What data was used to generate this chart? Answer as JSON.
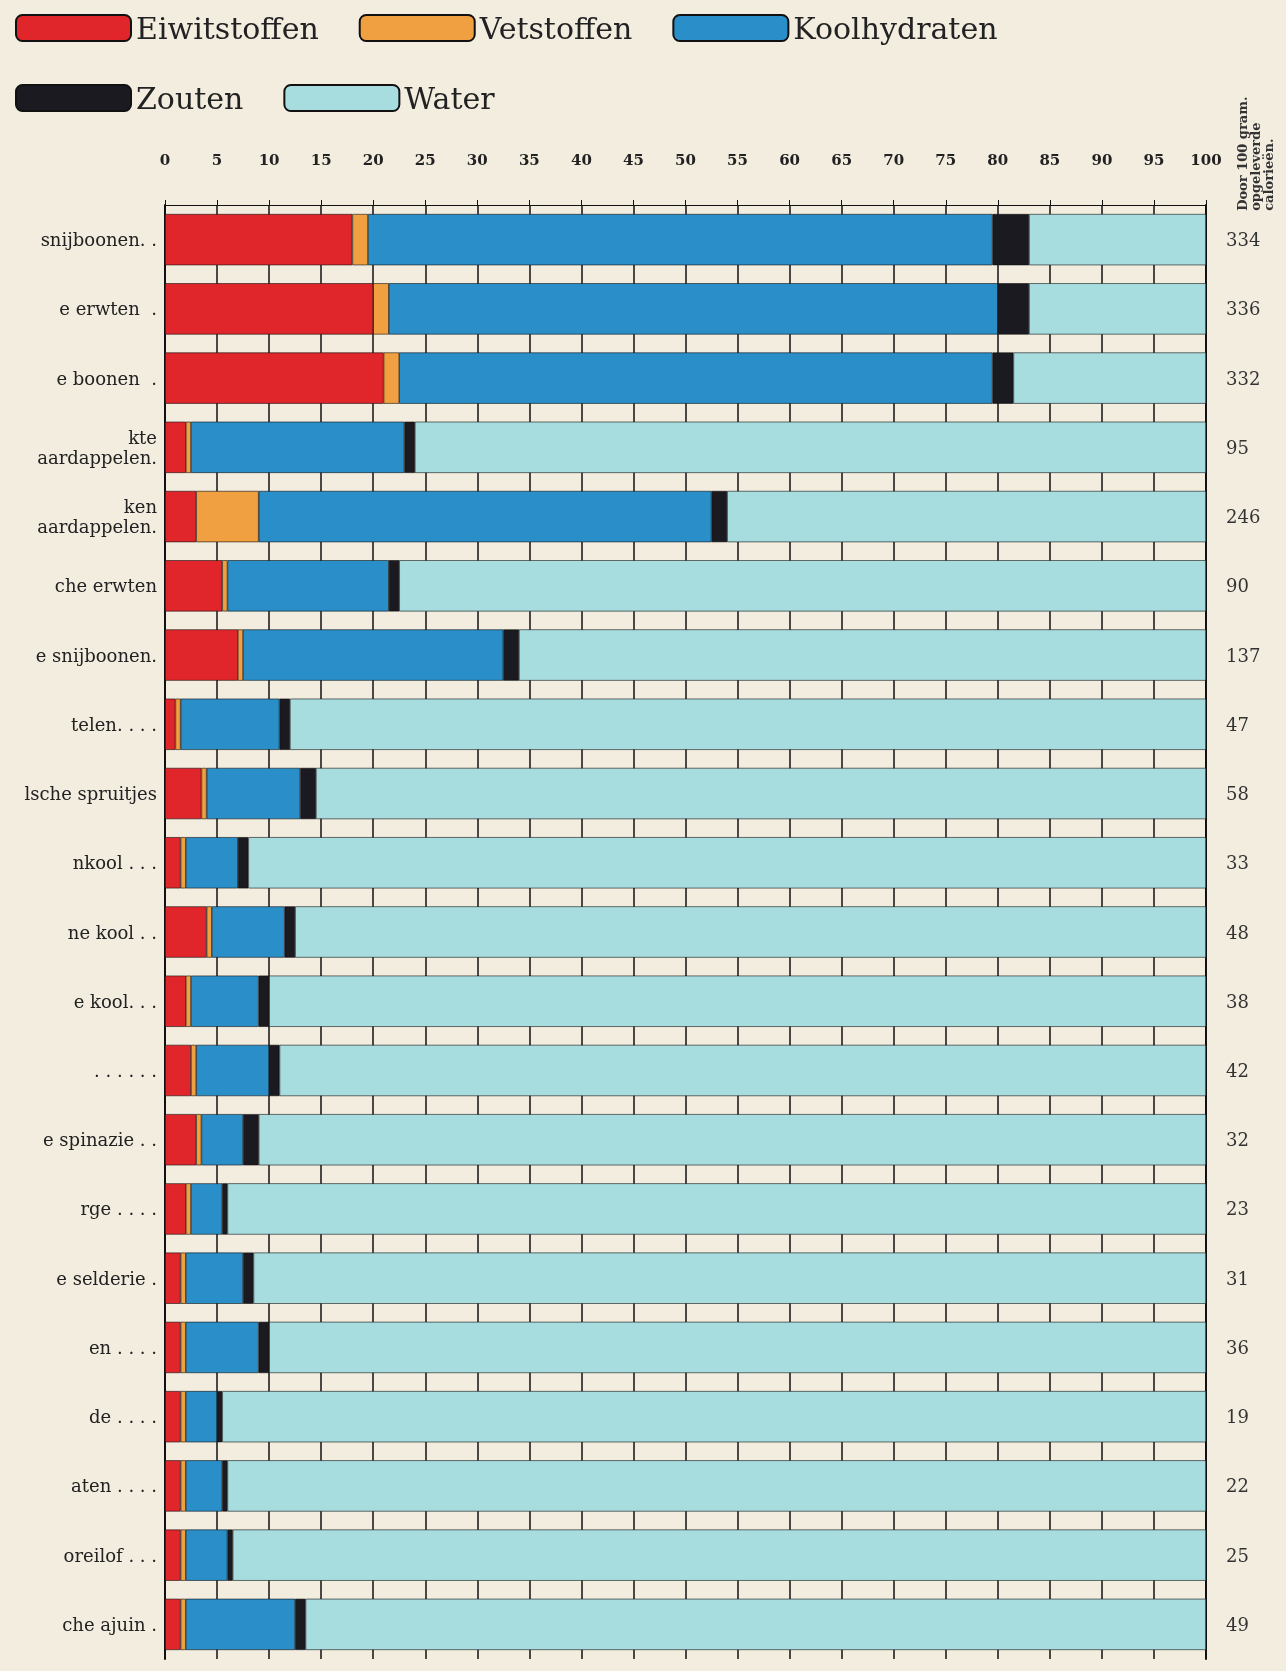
{
  "chart_data": {
    "type": "bar",
    "orientation": "horizontal",
    "stacked": true,
    "categories": [
      "snijboonen. .",
      "e erwten  .",
      "e boonen  .",
      "kte\naardappelen.",
      "ken\naardappelen.",
      "che erwten",
      "e snijboonen.",
      "telen. . . .",
      "lsche spruitjes",
      "nkool . . .",
      "ne kool . .",
      "e kool. . .",
      ". . . . . .",
      "e spinazie . .",
      "rge . . . .",
      "e selderie .",
      "en . . . .",
      "de . . . .",
      "aten . . . .",
      "oreilof . . .",
      "che ajuin ."
    ],
    "series": [
      {
        "name": "Eiwitstoffen",
        "color": "#e0262a",
        "values": [
          18,
          20,
          21,
          2,
          3,
          5.5,
          7,
          1,
          3.5,
          1.5,
          4,
          2,
          2.5,
          3,
          2,
          1.5,
          1.5,
          1.5,
          1.5,
          1.5,
          1.5
        ]
      },
      {
        "name": "Vetstoffen",
        "color": "#f0a040",
        "values": [
          1.5,
          1.5,
          1.5,
          0.5,
          6,
          0.5,
          0.5,
          0.5,
          0.5,
          0.5,
          0.5,
          0.5,
          0.5,
          0.5,
          0.5,
          0.5,
          0.5,
          0.5,
          0.5,
          0.5,
          0.5
        ]
      },
      {
        "name": "Koolhydraten",
        "color": "#2a8fc8",
        "values": [
          60,
          58.5,
          57,
          20.5,
          43.5,
          15.5,
          25,
          9.5,
          9,
          5,
          7,
          6.5,
          7,
          4,
          3,
          5.5,
          7,
          3,
          3.5,
          4,
          10.5
        ]
      },
      {
        "name": "Zouten",
        "color": "#1a1a20",
        "values": [
          3.5,
          3,
          2,
          1,
          1.5,
          1,
          1.5,
          1,
          1.5,
          1,
          1,
          1,
          1,
          1.5,
          0.5,
          1,
          1,
          0.5,
          0.5,
          0.5,
          1
        ]
      },
      {
        "name": "Water",
        "color": "#a8dde0",
        "values": [
          17,
          17,
          18.5,
          76,
          46,
          77.5,
          66,
          88,
          85.5,
          92,
          87.5,
          90,
          89,
          91,
          94,
          91.5,
          90,
          94.5,
          94,
          93.5,
          86.5
        ]
      }
    ],
    "xlim": [
      0,
      100
    ],
    "xticks": [
      0,
      5,
      10,
      15,
      20,
      25,
      30,
      35,
      40,
      45,
      50,
      55,
      60,
      65,
      70,
      75,
      80,
      85,
      90,
      95,
      100
    ],
    "grid": "x",
    "legend": "top",
    "y2label": "Door 100 gram. opgeleverde calorieën.",
    "annotations": [
      "334",
      "336",
      "332",
      "95",
      "246",
      "90",
      "137",
      "47",
      "58",
      "33",
      "48",
      "38",
      "42",
      "32",
      "23",
      "31",
      "36",
      "19",
      "22",
      "25",
      "49"
    ]
  }
}
